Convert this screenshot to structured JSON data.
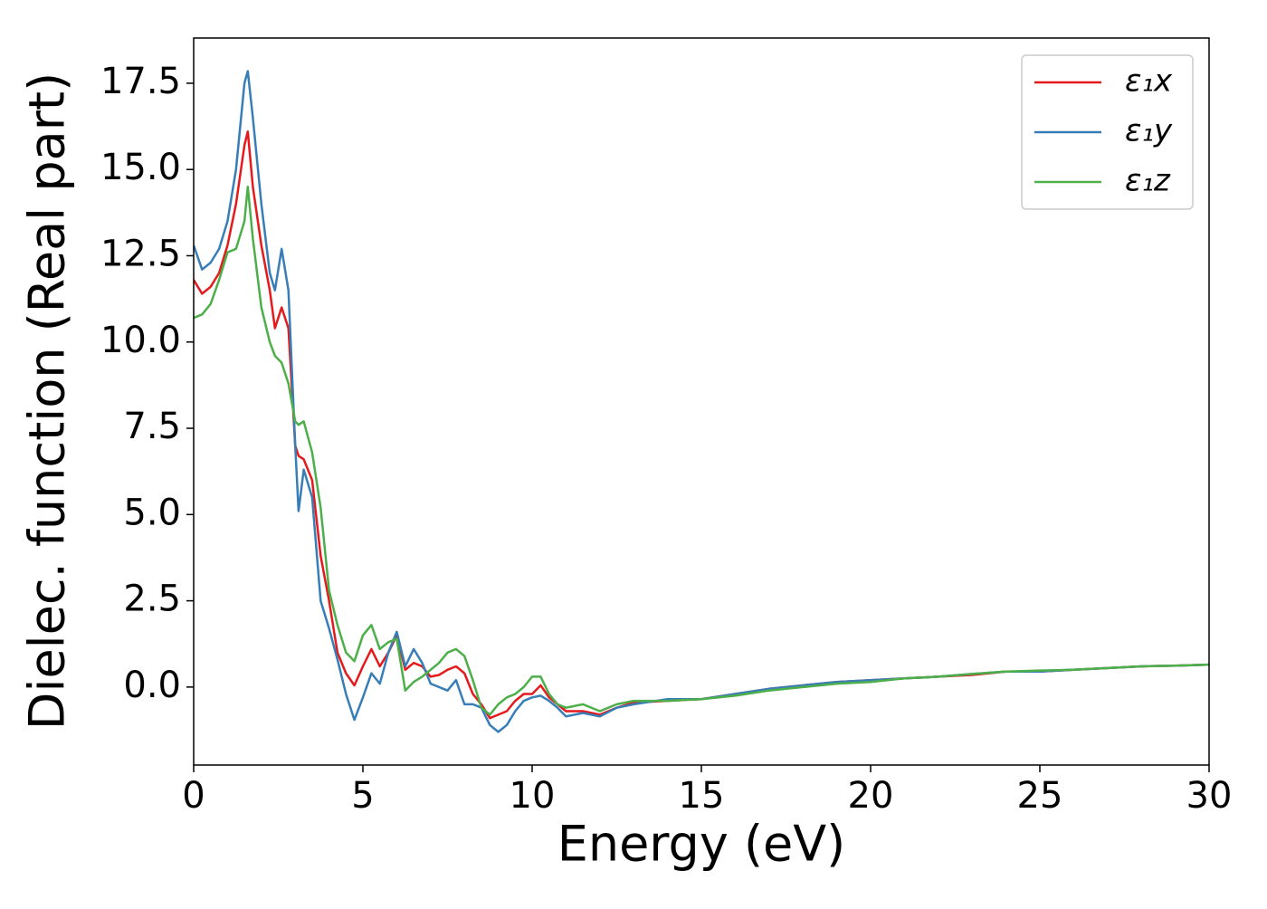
{
  "chart_data": {
    "type": "line",
    "xlabel": "Energy (eV)",
    "ylabel": "Dielec. function (Real part)",
    "x": [
      0,
      0.25,
      0.5,
      0.75,
      1,
      1.25,
      1.5,
      1.6,
      1.75,
      2,
      2.25,
      2.4,
      2.6,
      2.8,
      3,
      3.1,
      3.25,
      3.5,
      3.75,
      4,
      4.25,
      4.5,
      4.75,
      5,
      5.25,
      5.5,
      5.75,
      6,
      6.25,
      6.5,
      6.75,
      7,
      7.25,
      7.5,
      7.75,
      8,
      8.25,
      8.5,
      8.75,
      9,
      9.25,
      9.5,
      9.75,
      10,
      10.25,
      10.5,
      10.75,
      11,
      11.5,
      12,
      12.5,
      13,
      14,
      15,
      16,
      17,
      18,
      19,
      20,
      21,
      22,
      23,
      24,
      25,
      26,
      27,
      28,
      29,
      30
    ],
    "series": [
      {
        "name": "ε₁x",
        "color": "#e41a1c",
        "values": [
          11.8,
          11.4,
          11.6,
          12.0,
          12.8,
          14.0,
          15.7,
          16.1,
          14.5,
          12.8,
          11.5,
          10.4,
          11.0,
          10.4,
          7.0,
          6.7,
          6.6,
          6.0,
          3.8,
          2.5,
          1.0,
          0.4,
          0.05,
          0.6,
          1.1,
          0.6,
          1.0,
          1.5,
          0.5,
          0.7,
          0.6,
          0.3,
          0.35,
          0.5,
          0.6,
          0.4,
          -0.2,
          -0.5,
          -0.9,
          -0.8,
          -0.7,
          -0.4,
          -0.2,
          -0.2,
          0.05,
          -0.3,
          -0.5,
          -0.7,
          -0.7,
          -0.8,
          -0.6,
          -0.45,
          -0.4,
          -0.35,
          -0.2,
          -0.05,
          0.05,
          0.15,
          0.2,
          0.25,
          0.3,
          0.35,
          0.45,
          0.45,
          0.5,
          0.55,
          0.6,
          0.62,
          0.65
        ]
      },
      {
        "name": "ε₁y",
        "color": "#377eb8",
        "values": [
          12.8,
          12.1,
          12.3,
          12.7,
          13.5,
          15.0,
          17.5,
          17.85,
          16.5,
          14.0,
          12.0,
          11.5,
          12.7,
          11.5,
          7.0,
          5.1,
          6.3,
          5.5,
          2.5,
          1.7,
          0.8,
          -0.2,
          -0.95,
          -0.3,
          0.4,
          0.1,
          1.0,
          1.6,
          0.6,
          1.1,
          0.7,
          0.1,
          0.0,
          -0.1,
          0.2,
          -0.5,
          -0.5,
          -0.6,
          -1.1,
          -1.3,
          -1.1,
          -0.7,
          -0.4,
          -0.3,
          -0.25,
          -0.4,
          -0.6,
          -0.85,
          -0.75,
          -0.85,
          -0.6,
          -0.5,
          -0.35,
          -0.35,
          -0.2,
          -0.05,
          0.05,
          0.15,
          0.2,
          0.25,
          0.3,
          0.38,
          0.45,
          0.45,
          0.5,
          0.55,
          0.6,
          0.62,
          0.65
        ]
      },
      {
        "name": "ε₁z",
        "color": "#4daf4a",
        "values": [
          10.7,
          10.8,
          11.1,
          11.8,
          12.6,
          12.7,
          13.5,
          14.5,
          13.0,
          11.0,
          10.0,
          9.6,
          9.4,
          8.8,
          7.7,
          7.6,
          7.7,
          6.8,
          5.2,
          2.8,
          1.8,
          1.0,
          0.75,
          1.5,
          1.8,
          1.1,
          1.3,
          1.4,
          -0.1,
          0.15,
          0.3,
          0.5,
          0.7,
          1.0,
          1.1,
          0.9,
          0.2,
          -0.6,
          -0.8,
          -0.5,
          -0.3,
          -0.2,
          0.0,
          0.3,
          0.3,
          -0.2,
          -0.5,
          -0.6,
          -0.5,
          -0.7,
          -0.5,
          -0.4,
          -0.4,
          -0.35,
          -0.25,
          -0.1,
          0.0,
          0.1,
          0.15,
          0.25,
          0.3,
          0.38,
          0.45,
          0.48,
          0.5,
          0.55,
          0.6,
          0.62,
          0.65
        ]
      }
    ],
    "xlim": [
      0,
      30
    ],
    "xticks": [
      0,
      5,
      10,
      15,
      20,
      25,
      30
    ],
    "ylim": [
      -2.26,
      18.81
    ],
    "yticks": [
      {
        "value": 0,
        "label": "0.0"
      },
      2.5,
      {
        "value": 5,
        "label": "5.0"
      },
      7.5,
      {
        "value": 10,
        "label": "10.0"
      },
      12.5,
      {
        "value": 15,
        "label": "15.0"
      },
      17.5
    ],
    "grid": false,
    "legend": "upper right"
  }
}
